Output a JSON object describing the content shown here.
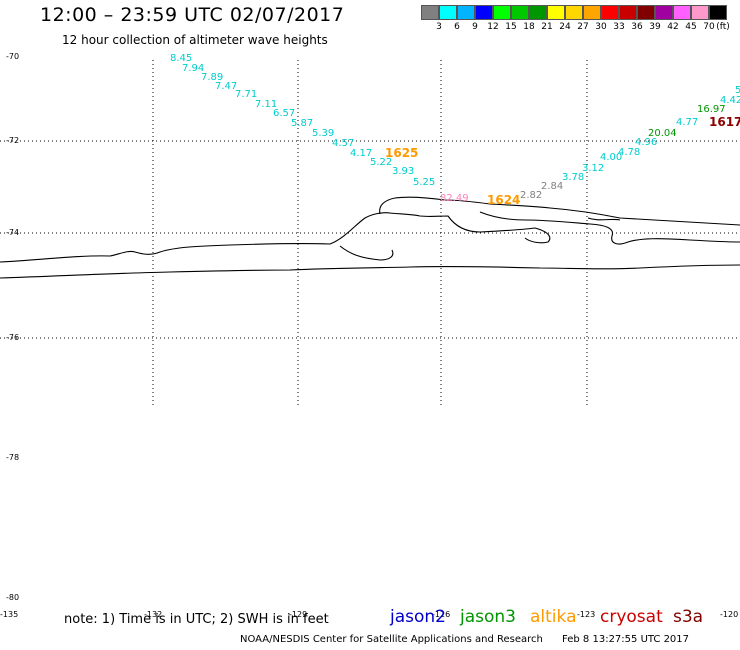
{
  "header": {
    "title": "12:00 – 23:59 UTC 02/07/2017",
    "subtitle": "12 hour collection of altimeter wave heights"
  },
  "legend": {
    "colors": [
      "#808080",
      "#00ffff",
      "#00b4ff",
      "#0000ff",
      "#00ff00",
      "#00c800",
      "#009600",
      "#ffff00",
      "#ffd700",
      "#ffa500",
      "#ff0000",
      "#c80000",
      "#800000",
      "#a000a0",
      "#ff60ff",
      "#ff99cc",
      "#000000"
    ],
    "labels": [
      "3",
      "6",
      "9",
      "12",
      "15",
      "18",
      "21",
      "24",
      "27",
      "30",
      "33",
      "36",
      "39",
      "42",
      "45",
      "70",
      "(ft)"
    ]
  },
  "map": {
    "lat_labels": [
      "-70",
      "-72",
      "-74",
      "-76",
      "-78",
      "-80"
    ],
    "lon_labels": [
      "-135",
      "-132",
      "-129",
      "-126",
      "-123",
      "-120"
    ],
    "track_west": {
      "color": "#00cccc",
      "values": [
        "8.45",
        "7.94",
        "7.89",
        "7.47",
        "7.71",
        "7.11",
        "6.57",
        "5.87",
        "5.39",
        "4.57",
        "4.17",
        "5.22",
        "3.93",
        "5.25"
      ]
    },
    "track_pink": {
      "color": "#ff80c0",
      "value": "82.49"
    },
    "track_gray": {
      "color": "#808080",
      "values": [
        "2.82",
        "2.84"
      ]
    },
    "track_east_cyan": {
      "color": "#00cccc",
      "values": [
        "3.78",
        "3.12",
        "4.00",
        "4.78",
        "4.96",
        "4.77",
        "4.42",
        "5"
      ]
    },
    "track_east_green": {
      "color": "#009600",
      "values": [
        "20.04",
        "16.97"
      ]
    },
    "pass_labels": [
      {
        "text": "1625",
        "color": "#ff9900"
      },
      {
        "text": "1624",
        "color": "#ff9900"
      },
      {
        "text": "1617",
        "color": "#8b0000"
      }
    ]
  },
  "footer": {
    "note": "note: 1) Time is in UTC; 2) SWH is in feet",
    "satellites": [
      {
        "name": "jason2",
        "color": "#0000cc"
      },
      {
        "name": "jason3",
        "color": "#009600"
      },
      {
        "name": "altika",
        "color": "#ff9900"
      },
      {
        "name": "cryosat",
        "color": "#cc0000"
      },
      {
        "name": "s3a",
        "color": "#800000"
      }
    ],
    "credit": "NOAA/NESDIS Center for Satellite Applications and Research",
    "timestamp": "Feb  8 13:27:55 UTC 2017"
  }
}
